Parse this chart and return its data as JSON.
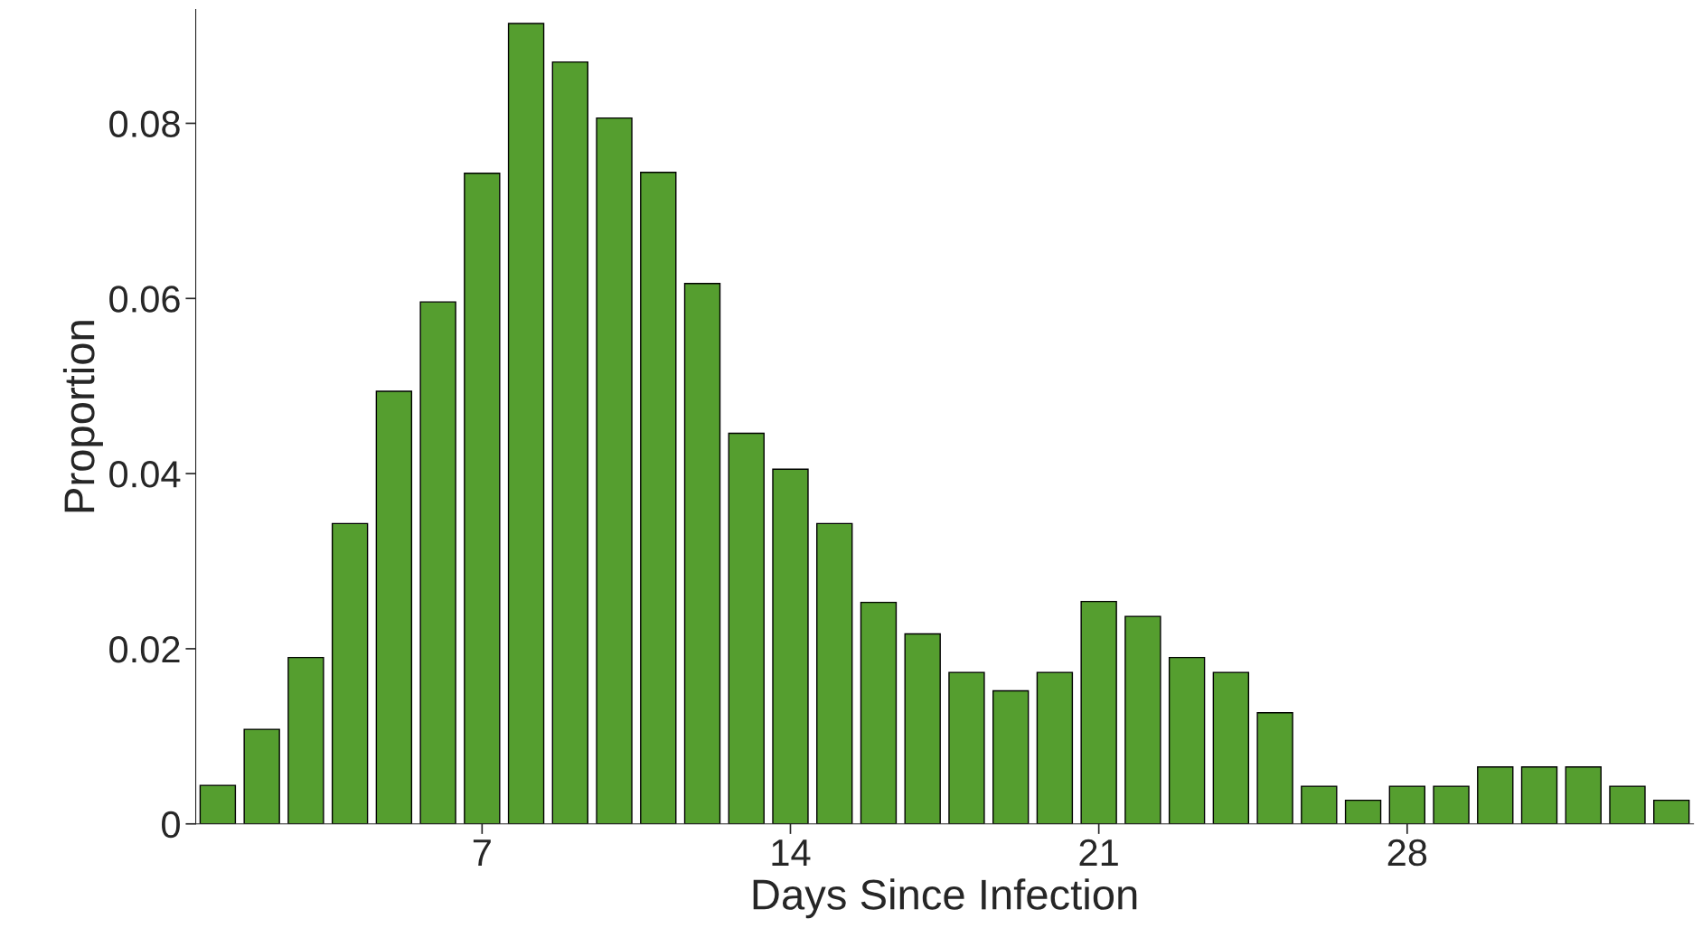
{
  "chart_data": {
    "type": "bar",
    "xlabel": "Days Since Infection",
    "ylabel": "Proportion",
    "x": [
      1,
      2,
      3,
      4,
      5,
      6,
      7,
      8,
      9,
      10,
      11,
      12,
      13,
      14,
      15,
      16,
      17,
      18,
      19,
      20,
      21,
      22,
      23,
      24,
      25,
      26,
      27,
      28,
      29,
      30,
      31,
      32,
      33,
      34
    ],
    "values": [
      0.0044,
      0.0108,
      0.019,
      0.0343,
      0.0494,
      0.0596,
      0.0743,
      0.0914,
      0.087,
      0.0806,
      0.0744,
      0.0617,
      0.0446,
      0.0405,
      0.0343,
      0.0253,
      0.0217,
      0.0173,
      0.0152,
      0.0173,
      0.0254,
      0.0237,
      0.019,
      0.0173,
      0.0127,
      0.0043,
      0.0027,
      0.0043,
      0.0043,
      0.0065,
      0.0065,
      0.0065,
      0.0043,
      0.0027
    ],
    "color": "#559e2f",
    "xlim": [
      0.5,
      34.5
    ],
    "xticks": [
      7,
      14,
      21,
      28
    ],
    "ylim": [
      0,
      0.093
    ],
    "yticks": [
      0,
      0.02,
      0.04,
      0.06,
      0.08
    ],
    "grid": false,
    "legend": false
  }
}
